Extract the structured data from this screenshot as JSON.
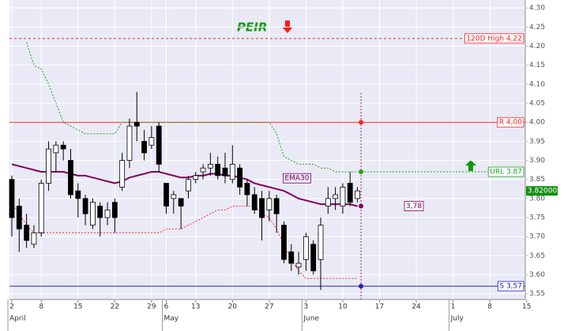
{
  "chart_data": {
    "type": "candlestick",
    "title": "PEIR",
    "categories": [
      "2",
      null,
      null,
      null,
      "8",
      null,
      null,
      null,
      null,
      "15",
      null,
      null,
      null,
      null,
      "22",
      null,
      null,
      null,
      null,
      "29",
      null,
      "6",
      null,
      null,
      null,
      "13",
      null,
      null,
      null,
      null,
      "20",
      null,
      null,
      null,
      null,
      "27",
      null,
      null,
      null,
      null,
      "3",
      null,
      null,
      null,
      null,
      "10",
      null,
      null,
      null,
      null,
      "17",
      null,
      null,
      null,
      null,
      "24",
      null,
      null,
      null,
      null,
      "1",
      null,
      null,
      null,
      null,
      "8",
      null,
      null,
      null,
      null,
      "15"
    ],
    "month_labels": [
      "April",
      null,
      null,
      null,
      null,
      null,
      null,
      null,
      null,
      null,
      null,
      null,
      null,
      null,
      null,
      null,
      null,
      null,
      null,
      null,
      null,
      "May",
      null,
      null,
      null,
      null,
      null,
      null,
      null,
      null,
      null,
      null,
      null,
      null,
      null,
      null,
      null,
      null,
      null,
      null,
      "June",
      null,
      null,
      null,
      null,
      null,
      null,
      null,
      null,
      null,
      null,
      null,
      null,
      null,
      null,
      null,
      null,
      null,
      null,
      null,
      "July",
      null,
      null,
      null,
      null,
      null,
      null,
      null,
      null,
      null,
      null
    ],
    "open": [
      3.85,
      3.78,
      3.73,
      3.68,
      3.71,
      3.84,
      3.92,
      3.94,
      3.9,
      3.82,
      3.8,
      3.73,
      3.78,
      3.75,
      3.79,
      3.83,
      3.9,
      4.0,
      3.95,
      3.94,
      3.99,
      3.84,
      3.8,
      3.8,
      3.82,
      3.85,
      3.87,
      3.88,
      3.89,
      3.88,
      3.85,
      3.88,
      3.84,
      3.81,
      3.8,
      3.77,
      3.8,
      3.73,
      3.66,
      3.62,
      3.64,
      3.68,
      3.64,
      3.78,
      3.8,
      3.78,
      3.84,
      3.8,
      null,
      null,
      null,
      null,
      null,
      null,
      null,
      null,
      null,
      null,
      null,
      null,
      null,
      null,
      null,
      null,
      null,
      null,
      null,
      null,
      null,
      null,
      null
    ],
    "high": [
      3.86,
      3.8,
      3.76,
      3.73,
      3.85,
      3.95,
      3.95,
      3.95,
      3.93,
      3.84,
      3.81,
      3.8,
      3.79,
      3.79,
      3.8,
      3.92,
      4.01,
      4.08,
      3.98,
      3.99,
      4.0,
      3.84,
      3.82,
      3.8,
      3.86,
      3.87,
      3.89,
      3.92,
      3.91,
      3.92,
      3.94,
      3.89,
      3.85,
      3.83,
      3.82,
      3.82,
      3.81,
      3.74,
      3.68,
      3.66,
      3.71,
      3.69,
      3.75,
      3.83,
      3.83,
      3.84,
      3.87,
      3.83,
      null,
      null,
      null,
      null,
      null,
      null,
      null,
      null,
      null,
      null,
      null,
      null,
      null,
      null,
      null,
      null,
      null,
      null,
      null,
      null,
      null,
      null,
      null
    ],
    "low": [
      3.7,
      3.66,
      3.67,
      3.67,
      3.7,
      3.82,
      3.87,
      3.9,
      3.8,
      3.75,
      3.73,
      3.72,
      3.7,
      3.73,
      3.71,
      3.82,
      3.88,
      3.95,
      3.9,
      3.93,
      3.87,
      3.76,
      3.76,
      3.72,
      3.8,
      3.84,
      3.85,
      3.86,
      3.85,
      3.84,
      3.84,
      3.81,
      3.78,
      3.76,
      3.69,
      3.74,
      3.71,
      3.63,
      3.61,
      3.6,
      3.61,
      3.6,
      3.56,
      3.76,
      3.77,
      3.76,
      3.78,
      3.79,
      null,
      null,
      null,
      null,
      null,
      null,
      null,
      null,
      null,
      null,
      null,
      null,
      null,
      null,
      null,
      null,
      null,
      null,
      null,
      null,
      null,
      null,
      null
    ],
    "close": [
      3.75,
      3.72,
      3.69,
      3.71,
      3.84,
      3.93,
      3.94,
      3.93,
      3.81,
      3.8,
      3.76,
      3.79,
      3.75,
      3.77,
      3.75,
      3.9,
      3.99,
      3.99,
      3.92,
      3.96,
      3.89,
      3.78,
      3.81,
      3.78,
      3.85,
      3.86,
      3.88,
      3.89,
      3.86,
      3.86,
      3.89,
      3.83,
      3.81,
      3.77,
      3.75,
      3.8,
      3.76,
      3.64,
      3.63,
      3.63,
      3.7,
      3.61,
      3.73,
      3.8,
      3.81,
      3.83,
      3.79,
      3.82,
      null,
      null,
      null,
      null,
      null,
      null,
      null,
      null,
      null,
      null,
      null,
      null,
      null,
      null,
      null,
      null,
      null,
      null,
      null,
      null,
      null,
      null,
      null
    ],
    "up_color": "#ffffff",
    "down_color": "#000000",
    "overlays": [
      {
        "name": "EMA30",
        "color": "#800060",
        "style": "solid",
        "values": [
          3.89,
          3.885,
          3.88,
          3.875,
          3.87,
          3.87,
          3.87,
          3.87,
          3.865,
          3.86,
          3.86,
          3.855,
          3.85,
          3.845,
          3.84,
          3.845,
          3.855,
          3.86,
          3.865,
          3.87,
          3.87,
          3.865,
          3.86,
          3.855,
          3.855,
          3.86,
          3.86,
          3.865,
          3.865,
          3.86,
          3.86,
          3.855,
          3.85,
          3.84,
          3.835,
          3.83,
          3.825,
          3.82,
          3.81,
          3.8,
          3.795,
          3.79,
          3.785,
          3.785,
          3.785,
          3.785,
          3.785,
          3.78,
          null,
          null,
          null,
          null,
          null,
          null,
          null,
          null,
          null,
          null,
          null,
          null,
          null,
          null,
          null,
          null,
          null,
          null,
          null,
          null,
          null,
          null,
          null
        ]
      },
      {
        "color": "#ff3030",
        "style": "dotted",
        "values": [
          3.79,
          3.76,
          3.73,
          3.71,
          3.71,
          3.71,
          3.71,
          3.71,
          3.71,
          3.71,
          3.71,
          3.71,
          3.71,
          3.71,
          3.71,
          3.71,
          3.71,
          3.71,
          3.71,
          3.71,
          3.71,
          3.72,
          3.72,
          3.72,
          3.73,
          3.74,
          3.75,
          3.76,
          3.77,
          3.77,
          3.78,
          3.78,
          3.78,
          3.78,
          3.76,
          3.75,
          3.72,
          3.68,
          3.64,
          3.61,
          3.59,
          3.59,
          3.59,
          3.59,
          3.59,
          3.59,
          3.59,
          3.59,
          null,
          null,
          null,
          null,
          null,
          null,
          null,
          null,
          null,
          null,
          null,
          null,
          null,
          null,
          null,
          null,
          null,
          null,
          null,
          null,
          null,
          null,
          null
        ]
      },
      {
        "color": "#20a020",
        "style": "dotted",
        "values": [
          null,
          null,
          4.21,
          4.15,
          4.14,
          4.1,
          4.05,
          4.0,
          3.99,
          3.98,
          3.97,
          3.97,
          3.97,
          3.97,
          3.97,
          4.0,
          4.0,
          4.0,
          4.0,
          4.0,
          4.0,
          4.0,
          4.0,
          4.0,
          4.0,
          4.0,
          4.0,
          4.0,
          4.0,
          4.0,
          4.0,
          4.0,
          4.0,
          4.0,
          4.0,
          4.0,
          3.97,
          3.91,
          3.9,
          3.89,
          3.89,
          3.89,
          3.88,
          3.88,
          3.87,
          3.87,
          3.87,
          3.87,
          null,
          null,
          null,
          null,
          null,
          null,
          null,
          null,
          null,
          null,
          null,
          null,
          null,
          null,
          null,
          null,
          null,
          null,
          null,
          null,
          null,
          null,
          null
        ]
      }
    ],
    "levels": [
      {
        "label": "120D High 4,22",
        "value": 4.22,
        "color": "#ff2020",
        "style": "dashed",
        "extent": "full",
        "dot": false
      },
      {
        "label": "R 4,00",
        "value": 4.0,
        "color": "#ff2020",
        "style": "solid",
        "extent": "full",
        "dot": true
      },
      {
        "label": "URL 3.87",
        "value": 3.87,
        "color": "#20a020",
        "style": "dotted",
        "extent": "forward",
        "dot": true
      },
      {
        "label": "S 3,57",
        "value": 3.57,
        "color": "#2020c0",
        "style": "solid",
        "extent": "full",
        "dot": true
      }
    ],
    "value_tag": {
      "label": "3,78",
      "value": 3.78,
      "color": "#800060"
    },
    "last_price": {
      "value": 3.82,
      "label": "3.82000",
      "color": "#109010"
    },
    "ylim": [
      3.535,
      4.321
    ],
    "yticks": [
      {
        "value": 3.55,
        "label": "3.55"
      },
      {
        "value": 3.6,
        "label": "3.60"
      },
      {
        "value": 3.65,
        "label": "3.65"
      },
      {
        "value": 3.7,
        "label": "3.70"
      },
      {
        "value": 3.75,
        "label": "3.75"
      },
      {
        "value": 3.8,
        "label": "3.80"
      },
      {
        "value": 3.85,
        "label": "3.85"
      },
      {
        "value": 3.9,
        "label": "3.90"
      },
      {
        "value": 3.95,
        "label": "3.95"
      },
      {
        "value": 4,
        "label": "4.00"
      },
      {
        "value": 4.05,
        "label": "4.05"
      },
      {
        "value": 4.1,
        "label": "4.10"
      },
      {
        "value": 4.15,
        "label": "4.15"
      },
      {
        "value": 4.2,
        "label": "4.20"
      },
      {
        "value": 4.25,
        "label": "4.25"
      },
      {
        "value": 4.3,
        "label": "4.30"
      }
    ],
    "grid": true
  }
}
